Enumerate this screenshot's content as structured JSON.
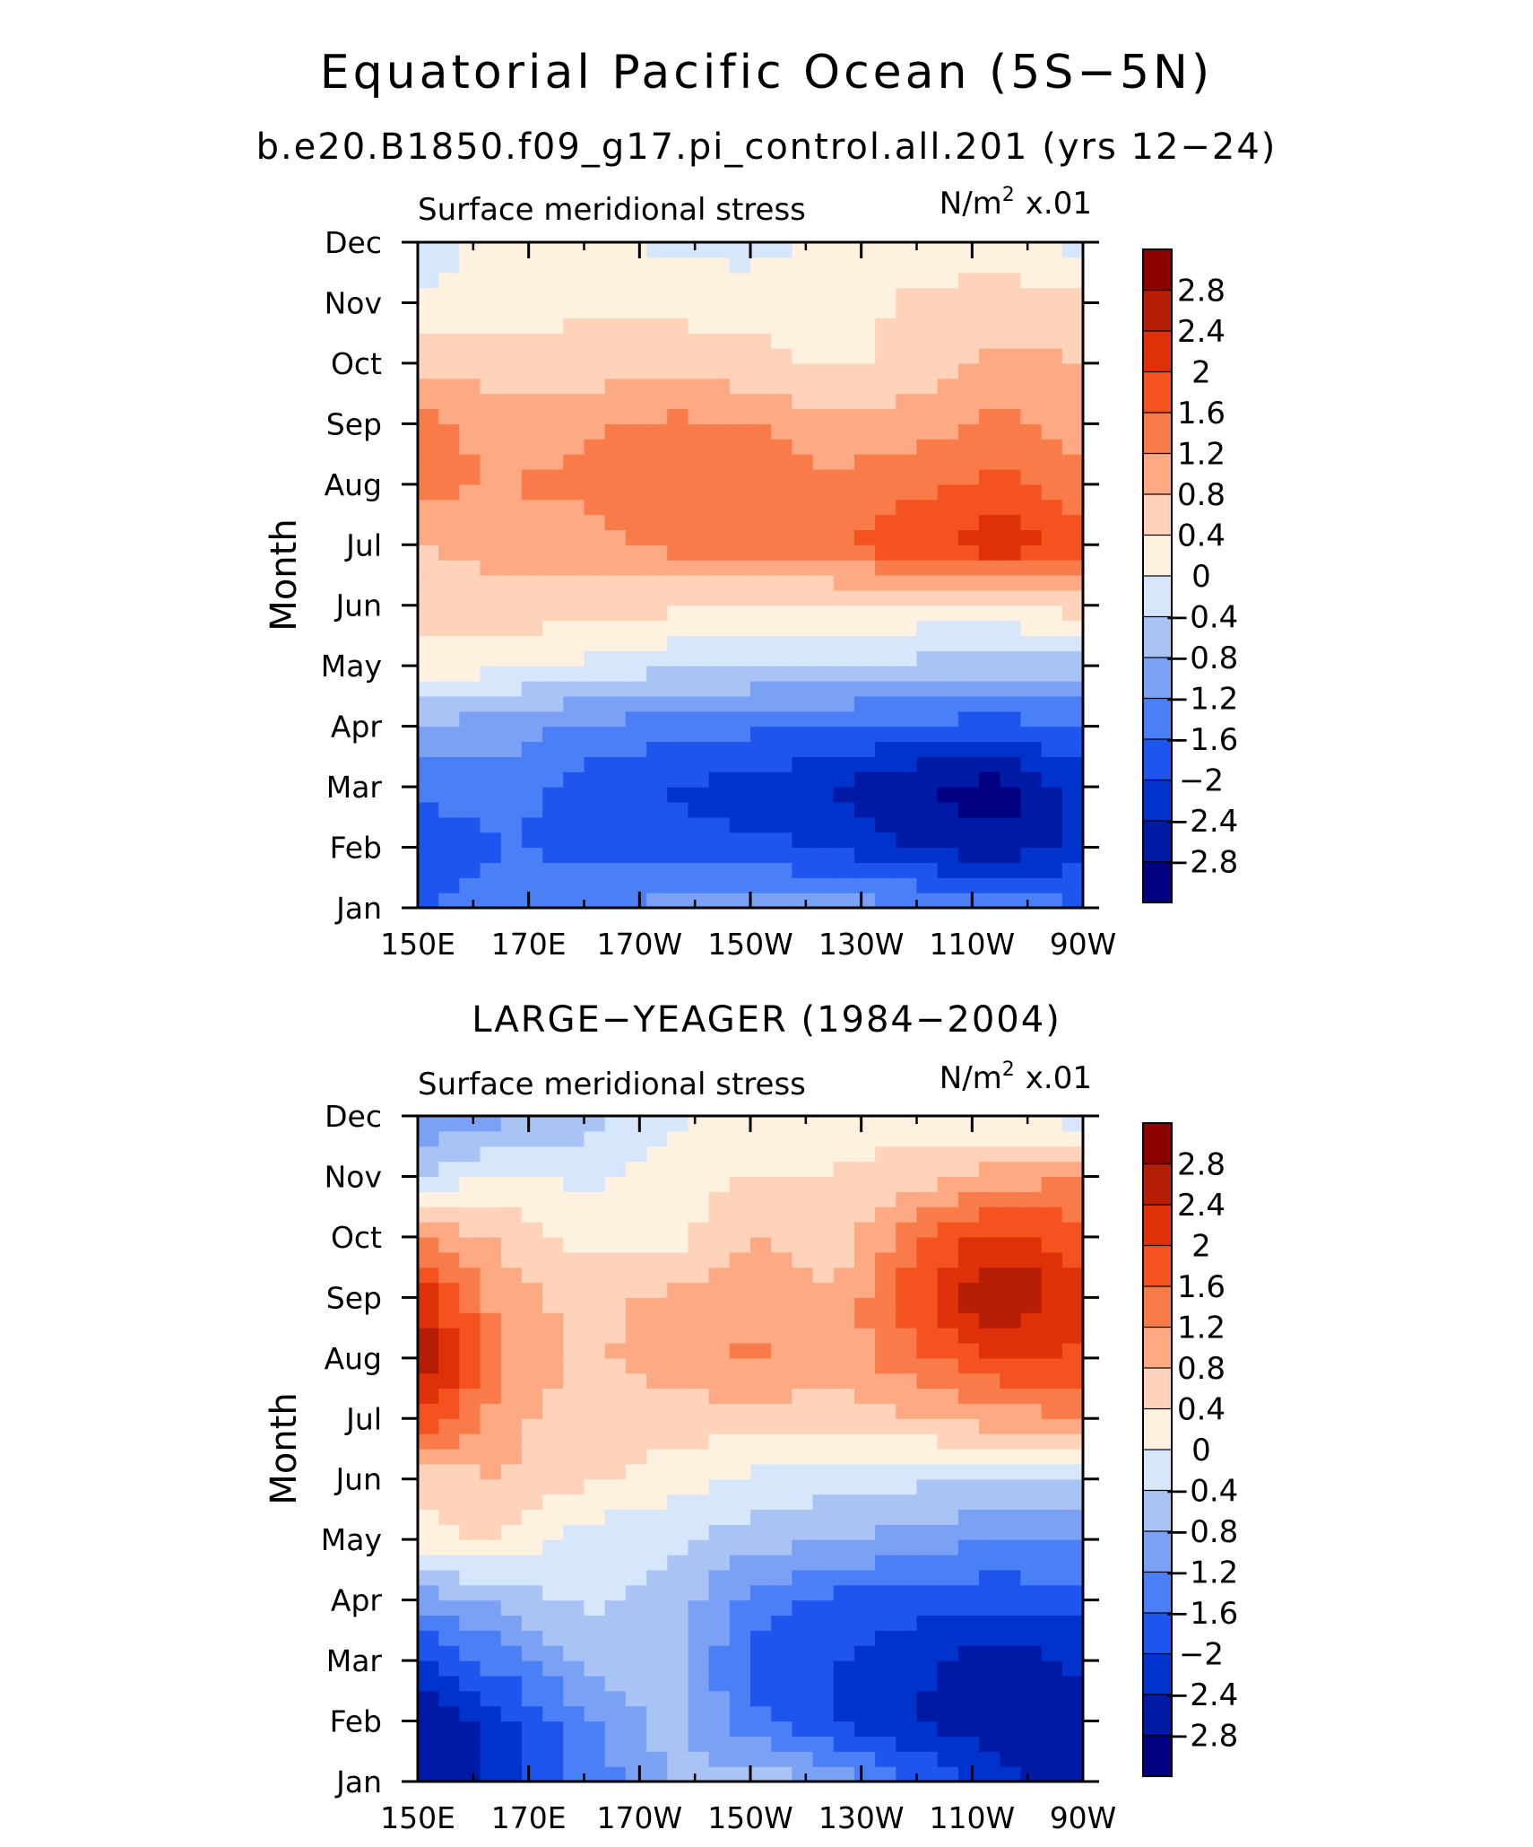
{
  "title": "Equatorial Pacific Ocean (5S−5N)",
  "subtitle": "b.e20.B1850.f09_g17.pi_control.all.201 (yrs 12−24)",
  "chart_data": [
    {
      "type": "heatmap",
      "panel_title": "",
      "left_label": "Surface meridional stress",
      "units_base": "N/m",
      "units_exp": "2",
      "units_scale": "x.01",
      "ylabel": "Month",
      "xlabel": "",
      "x_ticks": [
        "150E",
        "170E",
        "170W",
        "150W",
        "130W",
        "110W",
        "90W"
      ],
      "x_values": [
        150,
        170,
        190,
        210,
        230,
        250,
        270
      ],
      "xlim": [
        150,
        270
      ],
      "y_ticks": [
        "Jan",
        "Feb",
        "Mar",
        "Apr",
        "May",
        "Jun",
        "Jul",
        "Aug",
        "Sep",
        "Oct",
        "Nov",
        "Dec"
      ],
      "ylim": [
        1,
        12
      ],
      "values": [
        [
          -1.7,
          -1.3,
          -1.3,
          -1.0,
          -1.0,
          -1.0,
          -1.1,
          -1.2,
          -1.6
        ],
        [
          -1.9,
          -1.6,
          -1.7,
          -1.9,
          -1.9,
          -2.0,
          -2.5,
          -2.7,
          -2.2
        ],
        [
          -1.5,
          -1.4,
          -1.8,
          -2.0,
          -2.2,
          -2.4,
          -2.8,
          -3.0,
          -2.2
        ],
        [
          -0.9,
          -1.0,
          -1.3,
          -1.4,
          -1.5,
          -1.6,
          -1.7,
          -1.8,
          -1.6
        ],
        [
          0.2,
          0.1,
          -0.1,
          -0.3,
          -0.4,
          -0.5,
          -0.5,
          -0.6,
          -0.6
        ],
        [
          0.6,
          0.7,
          0.6,
          0.5,
          0.4,
          0.3,
          0.3,
          0.3,
          0.6
        ],
        [
          0.8,
          0.9,
          1.0,
          1.3,
          1.4,
          1.6,
          1.9,
          2.3,
          1.9
        ],
        [
          1.3,
          1.2,
          1.3,
          1.5,
          1.5,
          1.3,
          1.5,
          1.7,
          1.3
        ],
        [
          1.4,
          1.0,
          1.1,
          1.3,
          1.2,
          0.9,
          1.0,
          1.3,
          1.0
        ],
        [
          0.6,
          0.6,
          0.6,
          0.6,
          0.5,
          0.3,
          0.6,
          0.9,
          0.8
        ],
        [
          0.1,
          0.2,
          0.3,
          0.3,
          0.3,
          0.1,
          0.5,
          0.6,
          0.5
        ],
        [
          -0.3,
          0.2,
          0.2,
          -0.1,
          -0.2,
          0.2,
          0.1,
          0.2,
          -0.2
        ]
      ],
      "contour_levels": [
        -2.8,
        -2.4,
        -2,
        -1.6,
        -1.2,
        -0.8,
        -0.4,
        0,
        0.4,
        0.8,
        1.2,
        1.6,
        2,
        2.4,
        2.8
      ],
      "colorbar_labels": [
        "2.8",
        "2.4",
        "2",
        "1.6",
        "1.2",
        "0.8",
        "0.4",
        "0",
        "−0.4",
        "−0.8",
        "−1.2",
        "−1.6",
        "−2",
        "−2.4",
        "−2.8"
      ]
    },
    {
      "type": "heatmap",
      "panel_title": "LARGE−YEAGER (1984−2004)",
      "left_label": "Surface meridional stress",
      "units_base": "N/m",
      "units_exp": "2",
      "units_scale": "x.01",
      "ylabel": "Month",
      "xlabel": "",
      "x_ticks": [
        "150E",
        "170E",
        "170W",
        "150W",
        "130W",
        "110W",
        "90W"
      ],
      "x_values": [
        150,
        170,
        190,
        210,
        230,
        250,
        270
      ],
      "xlim": [
        150,
        270
      ],
      "y_ticks": [
        "Jan",
        "Feb",
        "Mar",
        "Apr",
        "May",
        "Jun",
        "Jul",
        "Aug",
        "Sep",
        "Oct",
        "Nov",
        "Dec"
      ],
      "ylim": [
        1,
        12
      ],
      "values": [
        [
          -2.9,
          -2.1,
          -1.5,
          -0.8,
          -0.5,
          -0.9,
          -1.6,
          -2.3,
          -2.5
        ],
        [
          -2.8,
          -2.2,
          -1.3,
          -0.6,
          -1.5,
          -2.0,
          -2.4,
          -2.7,
          -2.5
        ],
        [
          -2.2,
          -1.4,
          -0.7,
          -0.5,
          -1.7,
          -2.0,
          -2.3,
          -2.7,
          -2.3
        ],
        [
          -1.0,
          -0.7,
          -0.3,
          -0.5,
          -1.4,
          -1.7,
          -1.8,
          -1.9,
          -1.8
        ],
        [
          0.3,
          0.4,
          -0.2,
          -0.3,
          -0.6,
          -0.8,
          -1.0,
          -1.2,
          -1.1
        ],
        [
          0.5,
          0.8,
          0.5,
          0.2,
          -0.1,
          -0.2,
          -0.3,
          -0.4,
          -0.5
        ],
        [
          2.0,
          1.0,
          0.5,
          0.6,
          0.6,
          0.6,
          0.8,
          1.0,
          1.2
        ],
        [
          2.9,
          1.2,
          0.7,
          1.0,
          1.3,
          1.0,
          1.5,
          2.0,
          1.9
        ],
        [
          2.3,
          1.0,
          0.6,
          0.9,
          1.1,
          0.8,
          1.9,
          2.9,
          2.2
        ],
        [
          1.3,
          0.7,
          0.3,
          0.2,
          0.8,
          0.5,
          1.5,
          2.2,
          1.7
        ],
        [
          -0.4,
          0.1,
          -0.1,
          0.2,
          0.4,
          0.4,
          0.6,
          1.0,
          1.2
        ],
        [
          -1.3,
          -0.9,
          -0.6,
          -0.1,
          0.2,
          0.3,
          0.2,
          0.0,
          -0.2
        ]
      ],
      "contour_levels": [
        -2.8,
        -2.4,
        -2,
        -1.6,
        -1.2,
        -0.8,
        -0.4,
        0,
        0.4,
        0.8,
        1.2,
        1.6,
        2,
        2.4,
        2.8
      ],
      "colorbar_labels": [
        "2.8",
        "2.4",
        "2",
        "1.6",
        "1.2",
        "0.8",
        "0.4",
        "0",
        "−0.4",
        "−0.8",
        "−1.2",
        "−1.6",
        "−2",
        "−2.4",
        "−2.8"
      ]
    }
  ],
  "palette": [
    "#000080",
    "#001aa6",
    "#0033cc",
    "#1f55ef",
    "#4a7ff6",
    "#7ba1f5",
    "#a9c3f5",
    "#d6e6fb",
    "#fff1e0",
    "#fed3ba",
    "#fca984",
    "#fa7b4a",
    "#f4521f",
    "#de3109",
    "#b51d05",
    "#8b0000"
  ]
}
